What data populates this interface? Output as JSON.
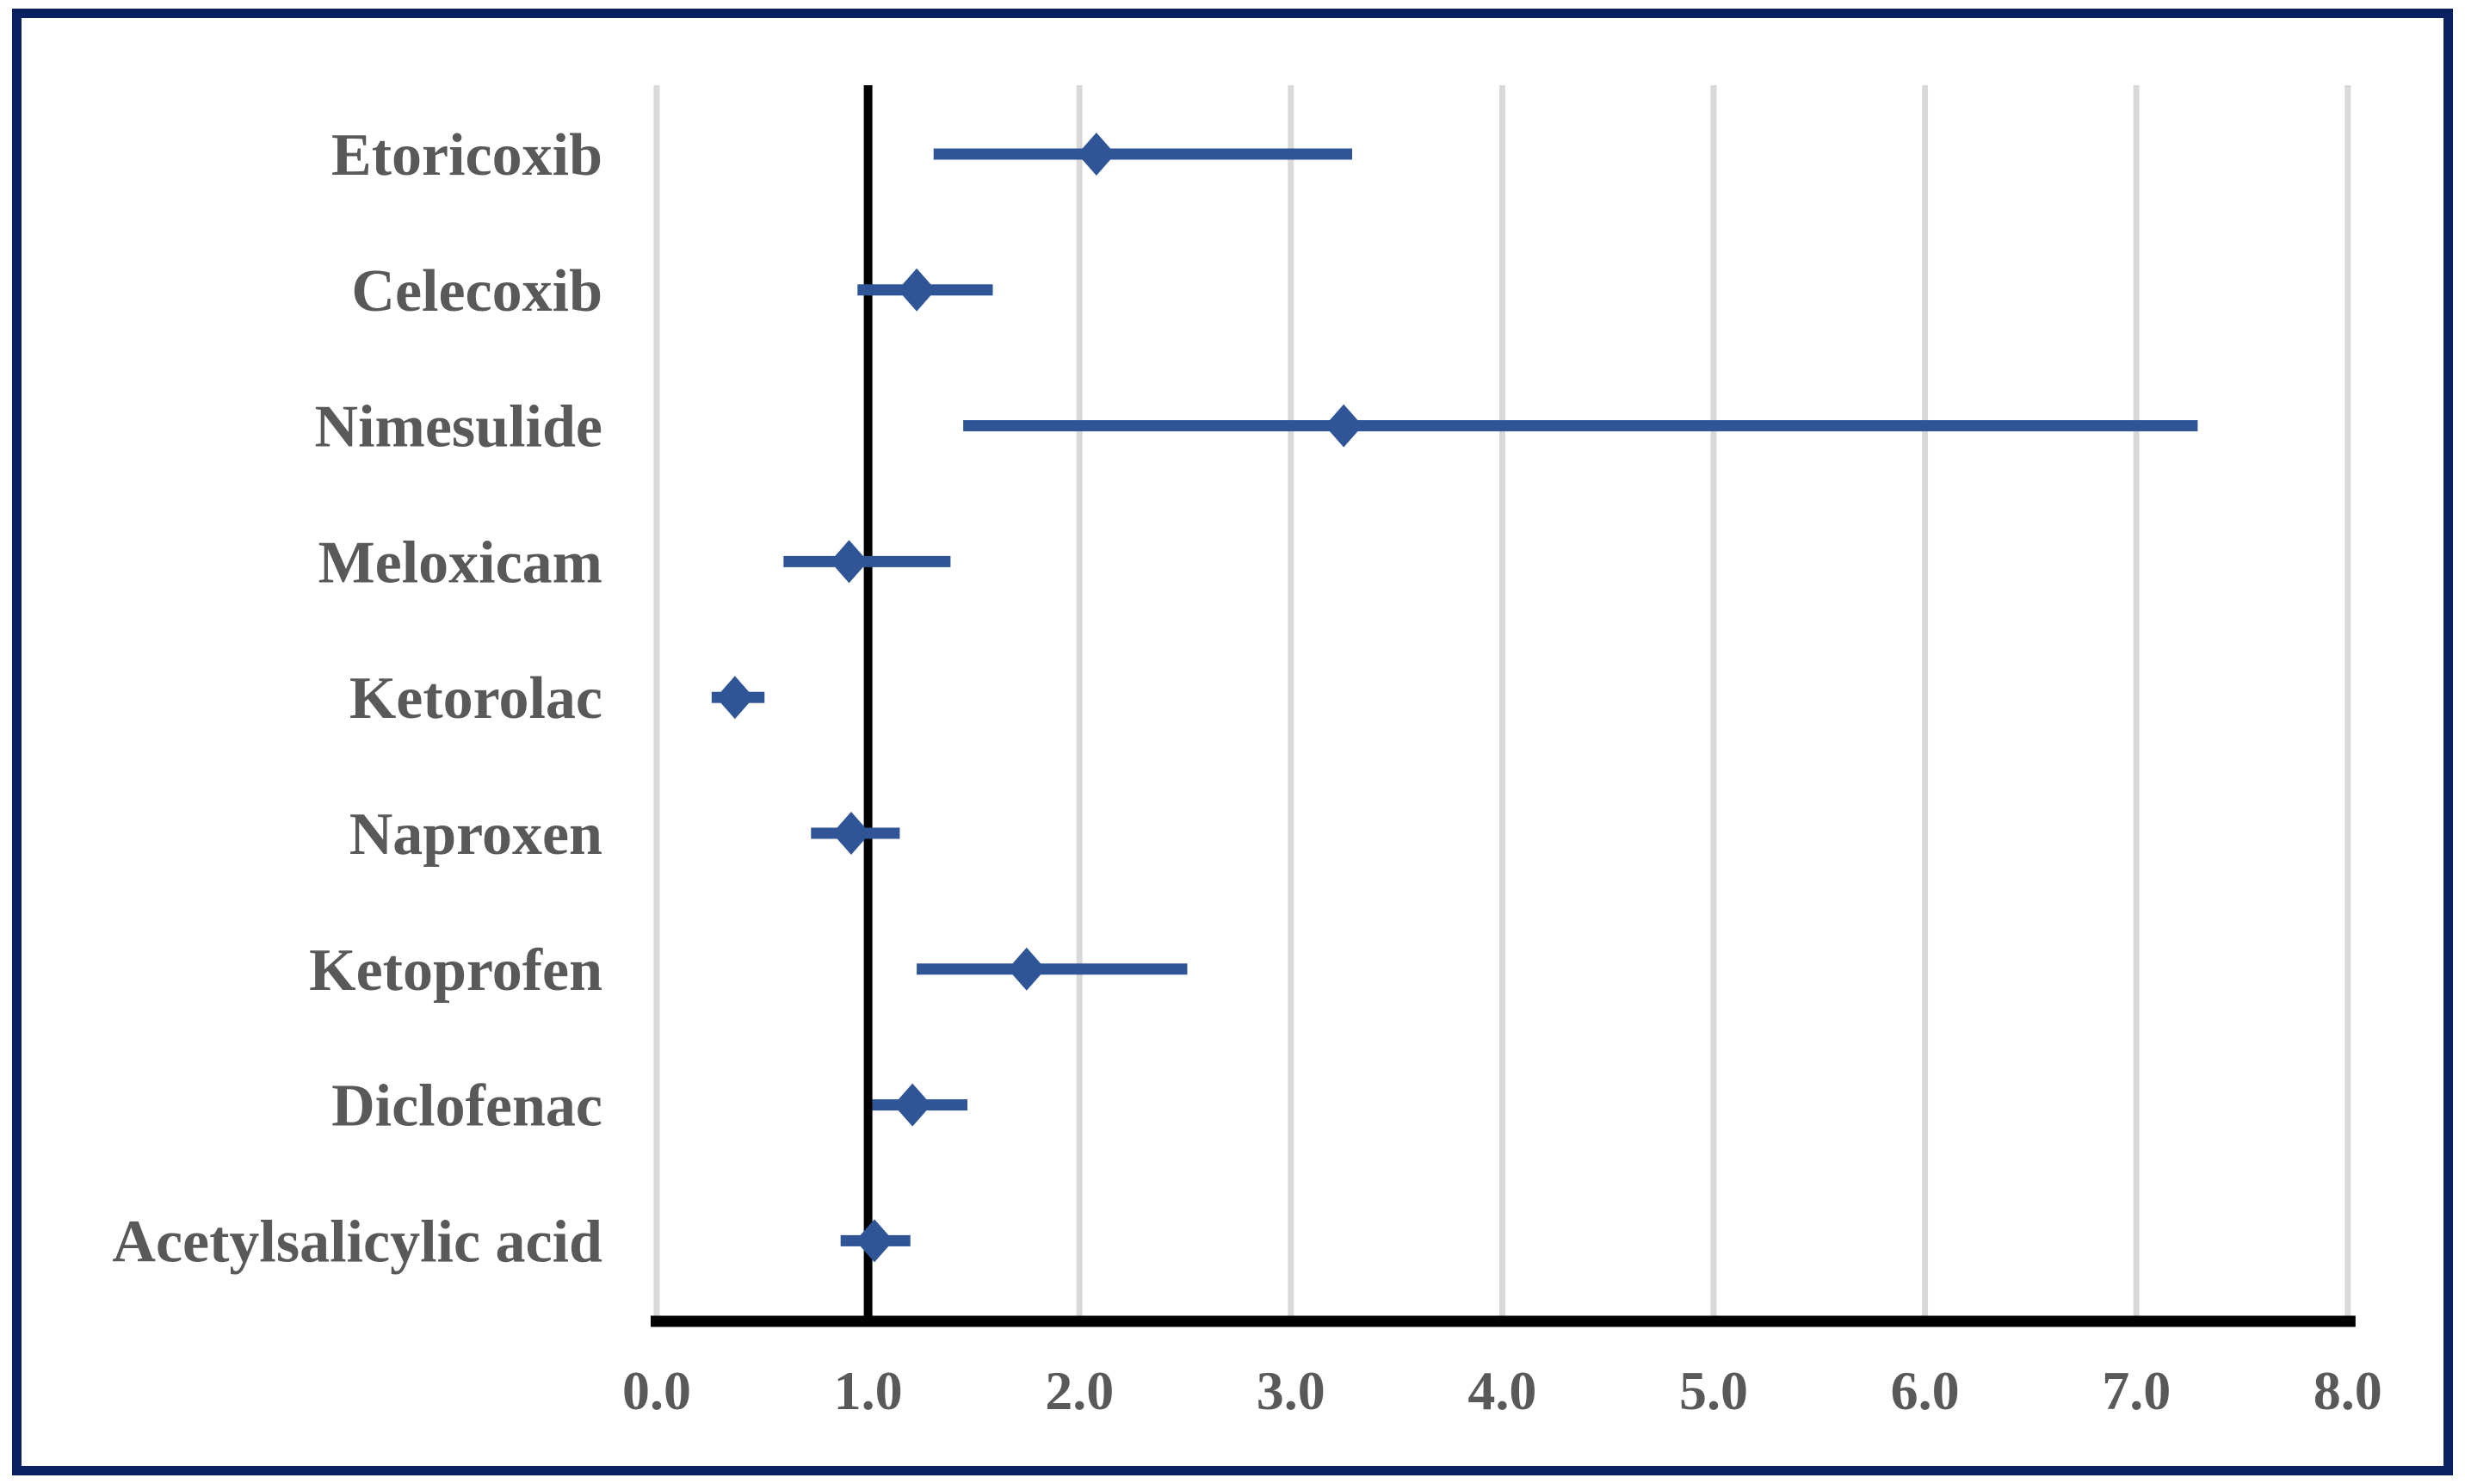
{
  "chart_data": {
    "type": "scatter",
    "subtype": "forest-plot",
    "title": "",
    "xlabel": "",
    "ylabel": "",
    "xlim": [
      0.0,
      8.0
    ],
    "grid": "vertical-gridlines-on",
    "legend_position": "none",
    "reference_line_x": 1.0,
    "marker": "diamond",
    "x_tick_labels": [
      "0.0",
      "1.0",
      "2.0",
      "3.0",
      "4.0",
      "5.0",
      "6.0",
      "7.0",
      "8.0"
    ],
    "x_tick_values": [
      0,
      1,
      2,
      3,
      4,
      5,
      6,
      7,
      8
    ],
    "categories": [
      "Etoricoxib",
      "Celecoxib",
      "Nimesulide",
      "Meloxicam",
      "Ketorolac",
      "Naproxen",
      "Ketoprofen",
      "Diclofenac",
      "Acetylsalicylic acid"
    ],
    "series": [
      {
        "name": "estimate-with-95ci",
        "points": [
          {
            "category": "Etoricoxib",
            "value": 2.08,
            "ci_low": 1.31,
            "ci_high": 3.29
          },
          {
            "category": "Celecoxib",
            "value": 1.23,
            "ci_low": 0.95,
            "ci_high": 1.59
          },
          {
            "category": "Nimesulide",
            "value": 3.25,
            "ci_low": 1.45,
            "ci_high": 7.29
          },
          {
            "category": "Meloxicam",
            "value": 0.91,
            "ci_low": 0.6,
            "ci_high": 1.39
          },
          {
            "category": "Ketorolac",
            "value": 0.37,
            "ci_low": 0.26,
            "ci_high": 0.51
          },
          {
            "category": "Naproxen",
            "value": 0.92,
            "ci_low": 0.73,
            "ci_high": 1.15
          },
          {
            "category": "Ketoprofen",
            "value": 1.75,
            "ci_low": 1.23,
            "ci_high": 2.51
          },
          {
            "category": "Diclofenac",
            "value": 1.21,
            "ci_low": 1.02,
            "ci_high": 1.47
          },
          {
            "category": "Acetylsalicylic acid",
            "value": 1.03,
            "ci_low": 0.87,
            "ci_high": 1.2
          }
        ]
      }
    ],
    "colors": {
      "marker_and_ci_blue": "#2F5597",
      "gridline_gray": "#D9D9D9",
      "label_gray": "#595959",
      "axis_black": "#000000",
      "outer_frame_navy": "#0A2161",
      "background": "#FFFFFF"
    }
  }
}
